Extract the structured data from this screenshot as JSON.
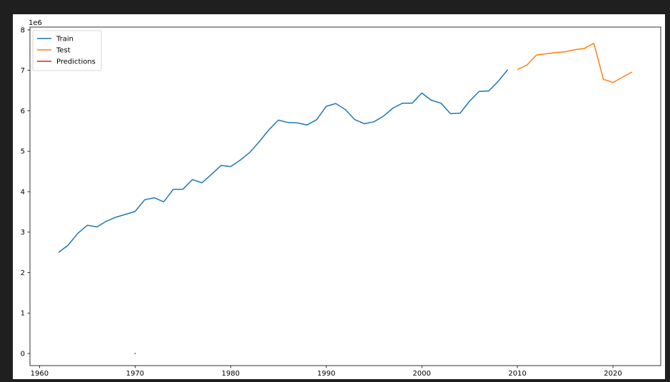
{
  "chart_data": {
    "type": "line",
    "title": "",
    "xlabel": "",
    "ylabel": "",
    "y_offset_label": "1e6",
    "xlim": [
      1959,
      2025
    ],
    "ylim": [
      -0.3,
      8.07
    ],
    "x_ticks": [
      1960,
      1970,
      1980,
      1990,
      2000,
      2010,
      2020
    ],
    "y_ticks": [
      0,
      1,
      2,
      3,
      4,
      5,
      6,
      7,
      8
    ],
    "legend_position": "top-left",
    "grid": false,
    "series": [
      {
        "name": "Train",
        "color": "#1f77b4",
        "x": [
          1962,
          1963,
          1964,
          1965,
          1966,
          1967,
          1968,
          1969,
          1970,
          1971,
          1972,
          1973,
          1974,
          1975,
          1976,
          1977,
          1978,
          1979,
          1980,
          1981,
          1982,
          1983,
          1984,
          1985,
          1986,
          1987,
          1988,
          1989,
          1990,
          1991,
          1992,
          1993,
          1994,
          1995,
          1996,
          1997,
          1998,
          1999,
          2000,
          2001,
          2002,
          2003,
          2004,
          2005,
          2006,
          2007,
          2008,
          2009
        ],
        "y": [
          2.5,
          2.68,
          2.97,
          3.17,
          3.13,
          3.27,
          3.37,
          3.44,
          3.51,
          3.8,
          3.85,
          3.75,
          4.06,
          4.06,
          4.3,
          4.22,
          4.43,
          4.65,
          4.62,
          4.78,
          4.97,
          5.24,
          5.53,
          5.77,
          5.71,
          5.7,
          5.65,
          5.78,
          6.11,
          6.18,
          6.03,
          5.78,
          5.68,
          5.73,
          5.87,
          6.07,
          6.19,
          6.19,
          6.44,
          6.26,
          6.19,
          5.93,
          5.94,
          6.24,
          6.48,
          6.49,
          6.73,
          7.02
        ]
      },
      {
        "name": "Test",
        "color": "#ff7f0e",
        "x": [
          2010,
          2011,
          2012,
          2013,
          2014,
          2015,
          2016,
          2017,
          2018,
          2019,
          2020,
          2021,
          2022
        ],
        "y": [
          7.02,
          7.13,
          7.38,
          7.41,
          7.44,
          7.46,
          7.51,
          7.54,
          7.67,
          6.78,
          6.7,
          6.83,
          6.96
        ]
      },
      {
        "name": "Predictions",
        "color": "#d62728",
        "x": [
          1970
        ],
        "y": [
          0.0
        ]
      }
    ]
  }
}
